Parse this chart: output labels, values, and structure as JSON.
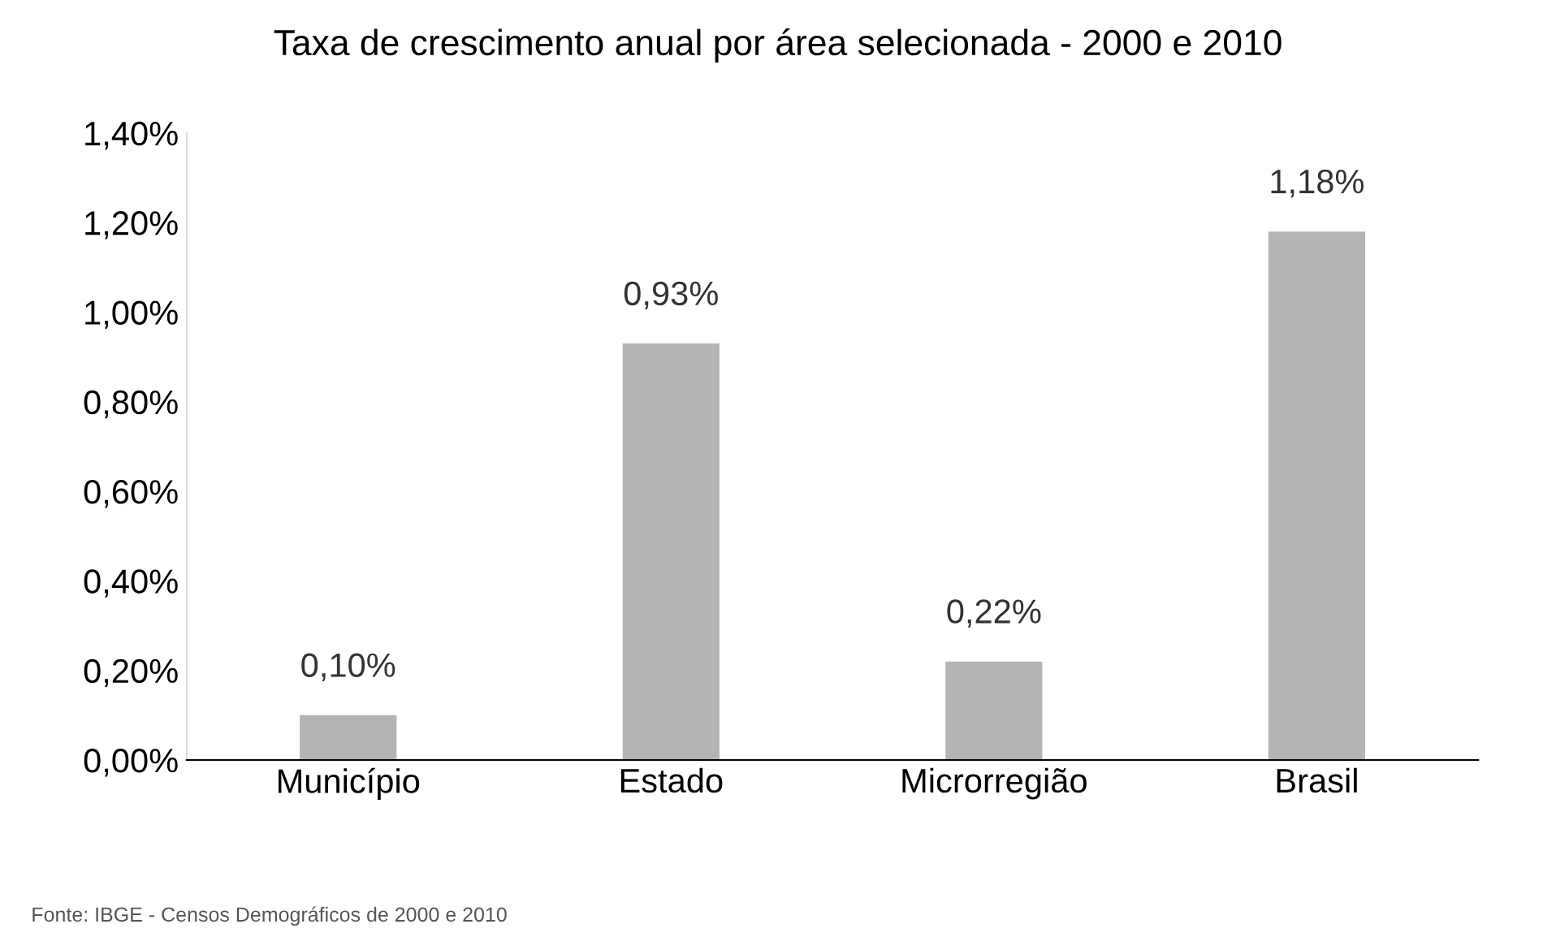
{
  "chart_data": {
    "type": "bar",
    "title": "Taxa de crescimento anual por área selecionada - 2000 e 2010",
    "categories": [
      "Município",
      "Estado",
      "Microrregião",
      "Brasil"
    ],
    "values": [
      0.1,
      0.93,
      0.22,
      1.18
    ],
    "value_labels": [
      "0,10%",
      "0,93%",
      "0,22%",
      "1,18%"
    ],
    "color": "#b4b4b4",
    "ylim": [
      0,
      1.4
    ],
    "yticks": [
      {
        "value": 0,
        "label": "0,00%"
      },
      {
        "value": 0.2,
        "label": "0,20%"
      },
      {
        "value": 0.4,
        "label": "0,40%"
      },
      {
        "value": 0.6,
        "label": "0,60%"
      },
      {
        "value": 0.8,
        "label": "0,80%"
      },
      {
        "value": 1.0,
        "label": "1,00%"
      },
      {
        "value": 1.2,
        "label": "1,20%"
      },
      {
        "value": 1.4,
        "label": "1,40%"
      }
    ],
    "grid": false,
    "annotations": [
      "Fonte: IBGE - Censos Demográficos de 2000 e 2010"
    ]
  }
}
